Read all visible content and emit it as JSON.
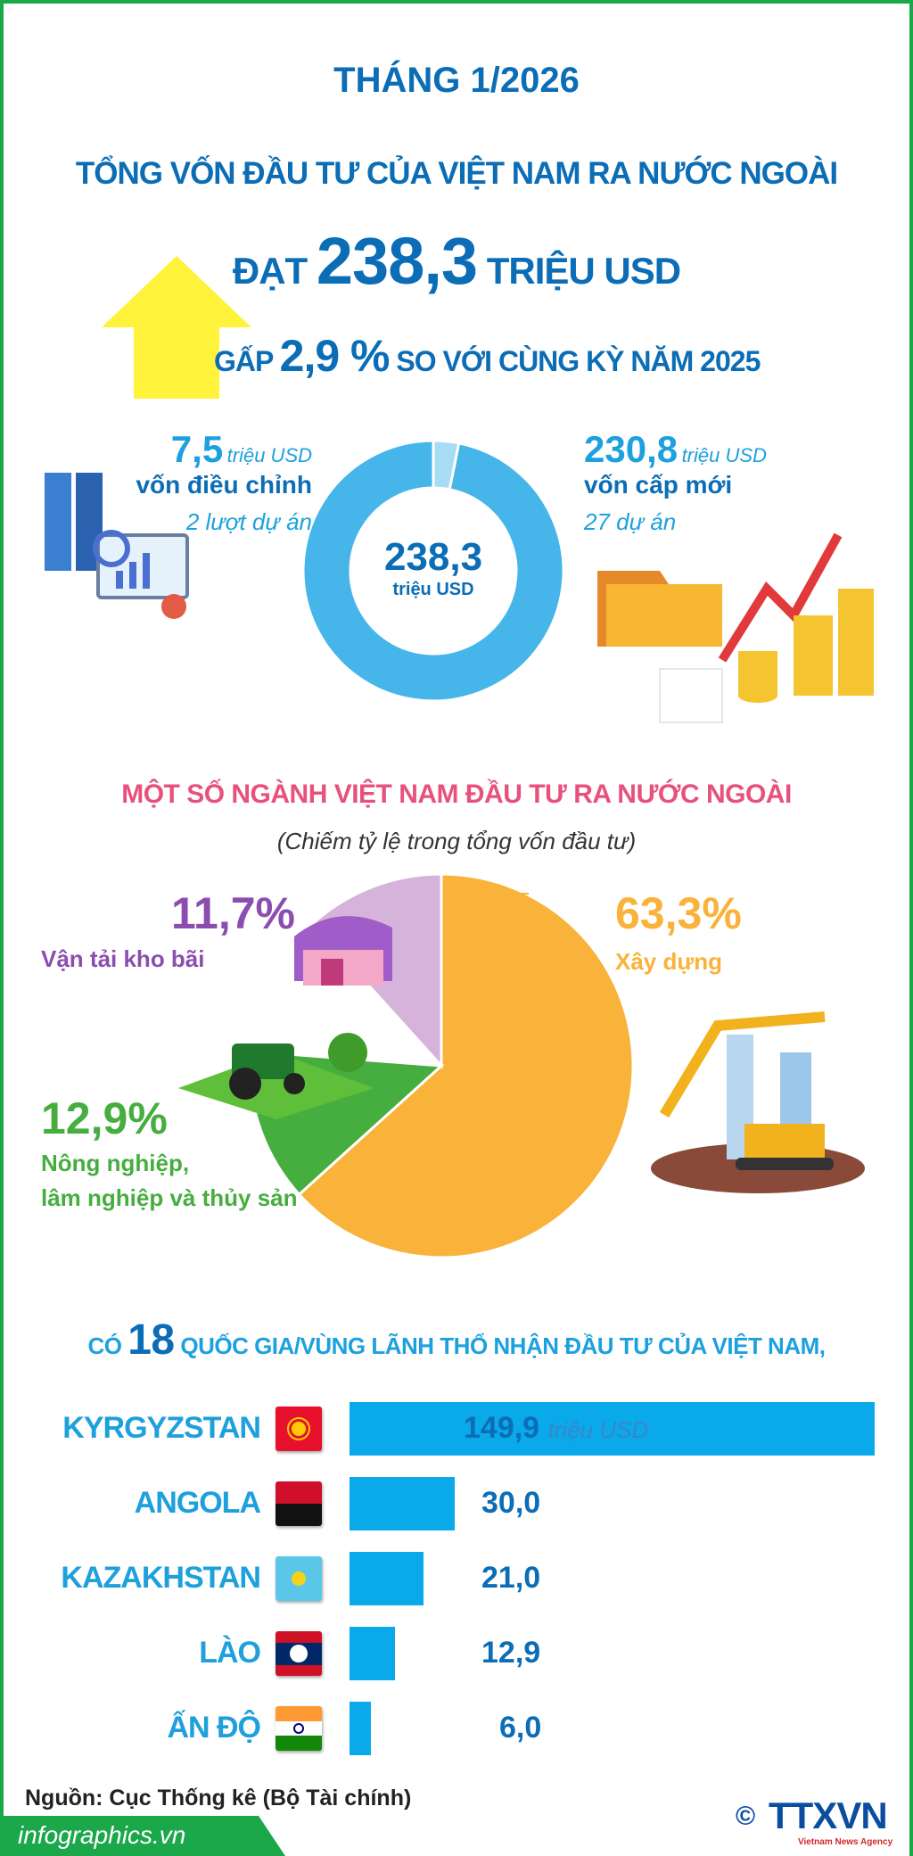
{
  "header": {
    "month": "THÁNG 1/2026",
    "line1": "TỔNG VỐN ĐẦU TƯ CỦA VIỆT NAM RA NƯỚC NGOÀI",
    "line2_prefix": "ĐẠT",
    "line2_value": "238,3",
    "line2_suffix": "TRIỆU USD",
    "line3_prefix": "GẤP",
    "line3_value": "2,9 %",
    "line3_suffix": "SO VỚI CÙNG KỲ NĂM 2025"
  },
  "donut_labels": {
    "left_value": "7,5",
    "left_unit": "triệu USD",
    "left_label": "vốn điều chỉnh",
    "left_count": "2 lượt dự án",
    "right_value": "230,8",
    "right_unit": "triệu USD",
    "right_label": "vốn cấp mới",
    "right_count": "27 dự án",
    "center_value": "238,3",
    "center_unit": "triệu USD"
  },
  "sectors": {
    "title": "MỘT SỐ NGÀNH VIỆT NAM ĐẦU TƯ RA NƯỚC NGOÀI",
    "subtitle": "(Chiếm tỷ lệ trong tổng vốn đầu tư)",
    "items": [
      {
        "value": "63,3%",
        "label": "Xây dựng"
      },
      {
        "value": "11,7%",
        "label": "Vận tải kho bãi"
      },
      {
        "value": "12,9%",
        "label": "Nông nghiệp,",
        "label2": "lâm nghiệp và thủy sản"
      }
    ]
  },
  "countries": {
    "prefix": "CÓ",
    "count": "18",
    "title": "QUỐC GIA/VÙNG LÃNH THỔ NHẬN ĐẦU TƯ CỦA VIỆT NAM,",
    "unit": "triệu USD",
    "rows": [
      {
        "name": "KYRGYZSTAN",
        "value": "149,9"
      },
      {
        "name": "ANGOLA",
        "value": "30,0"
      },
      {
        "name": "KAZAKHSTAN",
        "value": "21,0"
      },
      {
        "name": "LÀO",
        "value": "12,9"
      },
      {
        "name": "ẤN ĐỘ",
        "value": "6,0"
      }
    ]
  },
  "footer": {
    "source": "Nguồn: Cục Thống kê (Bộ Tài chính)",
    "site": "infographics.vn",
    "logo": "TTXVN",
    "logo_sub": "Vietnam News Agency",
    "copyright": "©"
  },
  "colors": {
    "dark_blue": "#0b6db6",
    "light_blue": "#1da1de",
    "donut": "#45b5ea",
    "donut_light": "#a8dcf4",
    "pink": "#e6517d",
    "orange": "#f9b23a",
    "green": "#46ad3f",
    "lilac": "#d5b3da",
    "purple": "#8c4db0",
    "bar": "#0aa9ea",
    "arrow": "#fff23a",
    "border": "#1aa84a"
  },
  "chart_data": [
    {
      "type": "pie",
      "variant": "donut",
      "categories": [
        "vốn điều chỉnh",
        "vốn cấp mới"
      ],
      "values": [
        7.5,
        230.8
      ],
      "unit": "triệu USD"
    },
    {
      "type": "pie",
      "title": "MỘT SỐ NGÀNH VIỆT NAM ĐẦU TƯ RA NƯỚC NGOÀI",
      "subtitle": "(Chiếm tỷ lệ trong tổng vốn đầu tư)",
      "categories": [
        "Xây dựng",
        "Nông nghiệp, lâm nghiệp và thủy sản",
        "Vận tải kho bãi"
      ],
      "values": [
        63.3,
        12.9,
        11.7
      ],
      "unit": "%"
    },
    {
      "type": "bar",
      "orientation": "horizontal",
      "categories": [
        "KYRGYZSTAN",
        "ANGOLA",
        "KAZAKHSTAN",
        "LÀO",
        "ẤN ĐỘ"
      ],
      "values": [
        149.9,
        30.0,
        21.0,
        12.9,
        6.0
      ],
      "unit": "triệu USD"
    }
  ]
}
